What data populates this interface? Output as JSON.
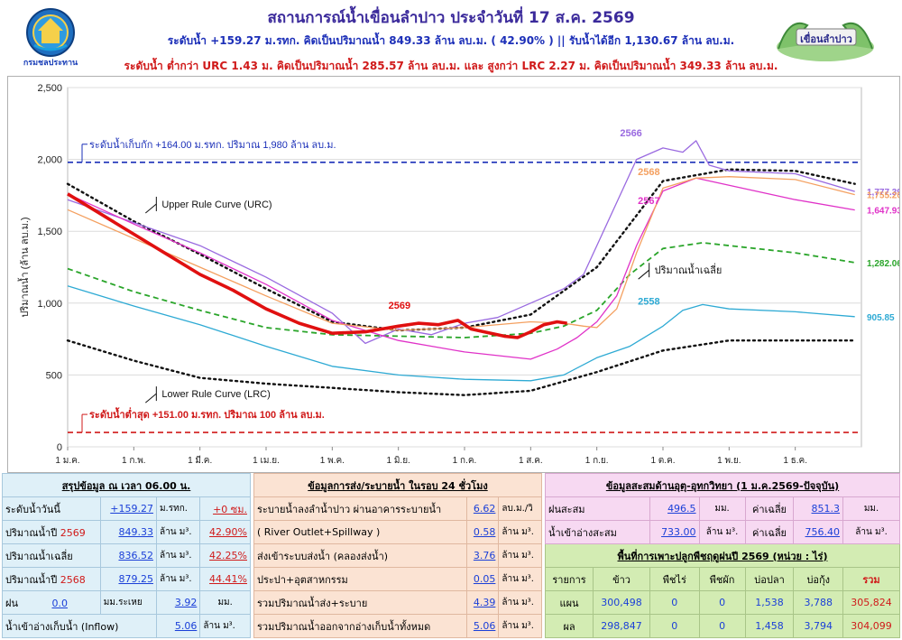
{
  "header": {
    "title": "สถานการณ์น้ำเขื่อนลำปาว ประจำวันที่ 17 ส.ค. 2569",
    "subtitle": "ระดับน้ำ +159.27 ม.รทก.  คิดเป็นปริมาณน้ำ 849.33 ล้าน ลบ.ม. ( 42.90% )  || รับน้ำได้อีก 1,130.67 ล้าน ลบ.ม.",
    "subtitle2": "ระดับน้ำ ต่ำกว่า URC 1.43 ม. คิดเป็นปริมาณน้ำ 285.57 ล้าน ลบ.ม. และ สูงกว่า LRC 2.27 ม. คิดเป็นปริมาณน้ำ 349.33 ล้าน ลบ.ม.",
    "logo_left_text": "กรมชลประทาน",
    "logo_right_text": "เขื่อนลำปาว",
    "logo_left_icon": "royal-irrigation-department-seal",
    "logo_right_icon": "naga-dam-emblem"
  },
  "chart_data": {
    "type": "line",
    "ylabel": "ปริมาณน้ำ (ล้าน ลบ.ม.)",
    "xlabel": "",
    "ylim": [
      0,
      2500
    ],
    "yticks": [
      0,
      500,
      1000,
      1500,
      2000,
      2500
    ],
    "ytick_labels": [
      "0",
      "500",
      "1,000",
      "1,500",
      "2,000",
      "2,500"
    ],
    "x_categories": [
      "1 ม.ค.",
      "1 ก.พ.",
      "1 มี.ค.",
      "1 เม.ย.",
      "1 พ.ค.",
      "1 มิ.ย.",
      "1 ก.ค.",
      "1 ส.ค.",
      "1 ก.ย.",
      "1 ต.ค.",
      "1 พ.ย.",
      "1 ธ.ค."
    ],
    "grid": "horizontal",
    "reference_lines": [
      {
        "label": "ระดับน้ำเก็บกัก +164.00 ม.รทก. ปริมาณ 1,980 ล้าน ลบ.ม.",
        "value": 1980,
        "color": "#1a2fb8"
      },
      {
        "label": "ระดับน้ำต่ำสุด +151.00 ม.รทก. ปริมาณ 100 ล้าน ลบ.ม.",
        "value": 100,
        "color": "#d01a1a"
      }
    ],
    "annotations": {
      "urc": "Upper Rule Curve (URC)",
      "lrc": "Lower Rule Curve (LRC)",
      "avg": "ปริมาณน้ำเฉลี่ย"
    },
    "series": [
      {
        "name": "Upper Rule Curve (URC)",
        "color": "#111111",
        "style": "dotted",
        "end_label": "",
        "x": [
          0,
          1,
          2,
          3,
          4,
          5,
          6,
          7,
          8,
          9,
          10,
          11,
          11.9
        ],
        "y": [
          1830,
          1570,
          1340,
          1100,
          870,
          810,
          830,
          920,
          1250,
          1850,
          1930,
          1920,
          1830
        ]
      },
      {
        "name": "Lower Rule Curve (LRC)",
        "color": "#111111",
        "style": "dotted",
        "end_label": "",
        "x": [
          0,
          1,
          2,
          3,
          4,
          5,
          6,
          7,
          8,
          9,
          10,
          11,
          11.9
        ],
        "y": [
          740,
          600,
          480,
          440,
          410,
          380,
          360,
          390,
          520,
          670,
          740,
          740,
          740
        ]
      },
      {
        "name": "ปริมาณน้ำเฉลี่ย",
        "color": "#2aa52a",
        "style": "dashed",
        "end_label": "1,282.06",
        "x": [
          0,
          1,
          2,
          3,
          4,
          5,
          6,
          7,
          7.5,
          8,
          8.5,
          9,
          9.6,
          10,
          11,
          11.9
        ],
        "y": [
          1240,
          1080,
          950,
          830,
          780,
          770,
          760,
          790,
          840,
          950,
          1200,
          1380,
          1420,
          1400,
          1350,
          1282
        ]
      },
      {
        "name": "2558",
        "color": "#2eaad4",
        "style": "solid",
        "end_label": "905.85",
        "x": [
          0,
          1,
          2,
          3,
          4,
          5,
          6,
          7,
          7.5,
          8,
          8.5,
          9,
          9.3,
          9.6,
          10,
          11,
          11.9
        ],
        "y": [
          1120,
          980,
          850,
          700,
          560,
          500,
          470,
          460,
          500,
          620,
          700,
          840,
          950,
          990,
          960,
          940,
          906
        ]
      },
      {
        "name": "2566",
        "color": "#9a6ae0",
        "style": "solid",
        "end_label": "1,777.39",
        "x": [
          0,
          1,
          2,
          3,
          4,
          4.5,
          5,
          5.5,
          6,
          6.5,
          7,
          7.5,
          7.8,
          8,
          8.3,
          8.6,
          9,
          9.3,
          9.5,
          9.7,
          10,
          11,
          11.9
        ],
        "y": [
          1720,
          1560,
          1400,
          1180,
          930,
          720,
          820,
          780,
          860,
          900,
          1000,
          1100,
          1200,
          1400,
          1700,
          2000,
          2080,
          2050,
          2130,
          1960,
          1920,
          1900,
          1777
        ]
      },
      {
        "name": "2567",
        "color": "#e032c8",
        "style": "solid",
        "end_label": "1,647.93",
        "x": [
          0,
          1,
          2,
          3,
          4,
          5,
          6,
          7,
          7.4,
          7.7,
          8,
          8.3,
          8.6,
          9,
          9.5,
          10,
          11,
          11.9
        ],
        "y": [
          1760,
          1550,
          1350,
          1130,
          880,
          740,
          660,
          610,
          680,
          760,
          870,
          1050,
          1400,
          1780,
          1870,
          1820,
          1720,
          1648
        ]
      },
      {
        "name": "2568",
        "color": "#f4a060",
        "style": "solid",
        "end_label": "1,755.20",
        "x": [
          0,
          1,
          2,
          3,
          4,
          5,
          6,
          7,
          7.5,
          7.8,
          8,
          8.3,
          8.6,
          9,
          9.5,
          10,
          11,
          11.9
        ],
        "y": [
          1650,
          1450,
          1250,
          1050,
          860,
          810,
          830,
          870,
          860,
          840,
          830,
          960,
          1350,
          1800,
          1870,
          1880,
          1860,
          1755
        ]
      },
      {
        "name": "2569",
        "color": "#e01010",
        "style": "solid-bold",
        "end_label": "",
        "x": [
          0,
          0.5,
          1,
          1.5,
          2,
          2.5,
          3,
          3.5,
          4,
          4.5,
          5,
          5.3,
          5.6,
          5.9,
          6.1,
          6.4,
          6.6,
          6.8,
          7,
          7.2,
          7.4,
          7.55
        ],
        "y": [
          1760,
          1620,
          1480,
          1340,
          1200,
          1090,
          960,
          860,
          790,
          800,
          840,
          860,
          850,
          880,
          820,
          790,
          770,
          760,
          800,
          850,
          870,
          860
        ]
      }
    ]
  },
  "summary_table": {
    "title": "สรุปข้อมูล ณ เวลา 06.00 น.",
    "rows": [
      {
        "label": "ระดับน้ำวันนี้",
        "value": "+159.27",
        "unit": "ม.รทก.",
        "extra": "+0 ซม."
      },
      {
        "label": "ปริมาณน้ำปี",
        "label_year": "2569",
        "value": "849.33",
        "unit": "ล้าน ม³.",
        "extra": "42.90%"
      },
      {
        "label": "ปริมาณน้ำเฉลี่ย",
        "value": "836.52",
        "unit": "ล้าน ม³.",
        "extra": "42.25%"
      },
      {
        "label": "ปริมาณน้ำปี",
        "label_year": "2568",
        "value": "879.25",
        "unit": "ล้าน ม³.",
        "extra": "44.41%"
      }
    ],
    "rain": {
      "label": "ฝน",
      "value": "0.0",
      "unit": "มม.ระเหย",
      "value2": "3.92",
      "unit2": "มม."
    },
    "inflow": {
      "label": "น้ำเข้าอ่างเก็บน้ำ (Inflow)",
      "value": "5.06",
      "unit": "ล้าน ม³."
    }
  },
  "release_table": {
    "title": "ข้อมูลการส่ง/ระบายน้ำ ในรอบ 24 ชั่วโมง",
    "rows": [
      {
        "label": "ระบายน้ำลงลำน้ำปาว ผ่านอาคารระบายน้ำ",
        "value": "6.62",
        "unit": "ลบ.ม./วิ"
      },
      {
        "label": "( River Outlet+Spillway )",
        "value": "0.58",
        "unit": "ล้าน ม³."
      },
      {
        "label": "ส่งเข้าระบบส่งน้ำ (คลองส่งน้ำ)",
        "value": "3.76",
        "unit": "ล้าน ม³."
      },
      {
        "label": "ประปา+อุตสาหกรรม",
        "value": "0.05",
        "unit": "ล้าน ม³."
      },
      {
        "label": "รวมปริมาณน้ำส่ง+ระบาย",
        "value": "4.39",
        "unit": "ล้าน ม³."
      },
      {
        "label": "รวมปริมาณน้ำออกจากอ่างเก็บน้ำทั้งหมด",
        "value": "5.06",
        "unit": "ล้าน ม³."
      }
    ]
  },
  "accum_table": {
    "title": "ข้อมูลสะสมด้านอุตุ-อุทกวิทยา (1 ม.ค.2569-ปัจจุบัน)",
    "rows": [
      {
        "label": "ฝนสะสม",
        "value": "496.5",
        "unit": "มม.",
        "avg_label": "ค่าเฉลี่ย",
        "avg": "851.3",
        "avg_unit": "มม."
      },
      {
        "label": "น้ำเข้าอ่างสะสม",
        "value": "733.00",
        "unit": "ล้าน ม³.",
        "avg_label": "ค่าเฉลี่ย",
        "avg": "756.40",
        "avg_unit": "ล้าน ม³."
      }
    ]
  },
  "crop_table": {
    "title": "พื้นที่การเพาะปลูกพืชฤดูฝนปี 2569 (หน่วย : ไร่)",
    "headers": [
      "รายการ",
      "ข้าว",
      "พืชไร่",
      "พืชผัก",
      "บ่อปลา",
      "บ่อกุ้ง",
      "รวม"
    ],
    "rows": [
      [
        "แผน",
        "300,498",
        "0",
        "0",
        "1,538",
        "3,788",
        "305,824"
      ],
      [
        "ผล",
        "298,847",
        "0",
        "0",
        "1,458",
        "3,794",
        "304,099"
      ]
    ]
  }
}
